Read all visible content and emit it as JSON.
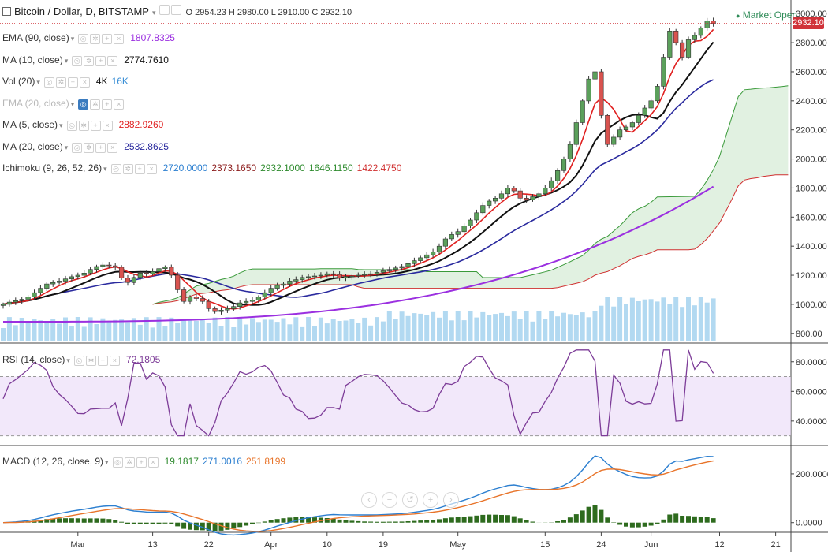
{
  "header": {
    "title": "Bitcoin / Dollar, D, BITSTAMP",
    "ohlc_text": "O 2954.23 H 2980.00 L 2910.00 C 2932.10",
    "market_status": "Market Open",
    "last_price": "2932.10"
  },
  "indicators": [
    {
      "name": "EMA (90, close)",
      "values": [
        "1807.8325"
      ],
      "value_colors": [
        "#9b30e0"
      ],
      "faded": false
    },
    {
      "name": "MA (10, close)",
      "values": [
        "2774.7610"
      ],
      "value_colors": [
        "#111111"
      ],
      "faded": false
    },
    {
      "name": "Vol (20)",
      "values": [
        "4K",
        "16K"
      ],
      "value_colors": [
        "#111111",
        "#3a8fd6"
      ],
      "faded": false
    },
    {
      "name": "EMA (20, close)",
      "values": [],
      "value_colors": [],
      "faded": true
    },
    {
      "name": "MA (5, close)",
      "values": [
        "2882.9260"
      ],
      "value_colors": [
        "#e02020"
      ],
      "faded": false
    },
    {
      "name": "MA (20, close)",
      "values": [
        "2532.8625"
      ],
      "value_colors": [
        "#2a2a9e"
      ],
      "faded": false
    },
    {
      "name": "Ichimoku (9, 26, 52, 26)",
      "values": [
        "2720.0000",
        "2373.1650",
        "2932.1000",
        "1646.1150",
        "1422.4750"
      ],
      "value_colors": [
        "#2c7fd0",
        "#8b1a1a",
        "#2e8b2e",
        "#2e8b2e",
        "#d03030"
      ],
      "faded": false
    }
  ],
  "rsi": {
    "name": "RSI (14, close)",
    "value": "72.1805"
  },
  "macd": {
    "name": "MACD (12, 26, close, 9)",
    "values": [
      "19.1817",
      "271.0016",
      "251.8199"
    ],
    "value_colors": [
      "#2e8b2e",
      "#2c7fd0",
      "#e8742a"
    ]
  },
  "nav": [
    "‹",
    "−",
    "↺",
    "+",
    "›"
  ],
  "colors": {
    "up": "#5ba05b",
    "down": "#d9534f",
    "ema90": "#9b30e0",
    "ma10": "#111111",
    "ma5": "#e02020",
    "ma20": "#2a2a9e",
    "rsi": "#7d3c98",
    "macd": "#2c7fd0",
    "signal": "#e8742a",
    "hist": "#2e6b1e",
    "cloud": "#c8e6c8",
    "volume": "#9fd0ee"
  },
  "chart_data": {
    "type": "candlestick",
    "price_axis": {
      "min": 750,
      "max": 3050,
      "ticks": [
        800,
        1000,
        1200,
        1400,
        1600,
        1800,
        2000,
        2200,
        2400,
        2600,
        2800,
        3000
      ],
      "tick_labels": [
        "800.00",
        "1000.00",
        "1200.00",
        "1400.00",
        "1600.00",
        "1800.00",
        "2000.00",
        "2200.00",
        "2400.00",
        "2600.00",
        "2800.00",
        "3000.00"
      ]
    },
    "x_ticks": [
      {
        "i": 12,
        "label": "Mar"
      },
      {
        "i": 24,
        "label": "13"
      },
      {
        "i": 33,
        "label": "22"
      },
      {
        "i": 43,
        "label": "Apr"
      },
      {
        "i": 52,
        "label": "10"
      },
      {
        "i": 61,
        "label": "19"
      },
      {
        "i": 73,
        "label": "May"
      },
      {
        "i": 87,
        "label": "15"
      },
      {
        "i": 96,
        "label": "24"
      },
      {
        "i": 104,
        "label": "Jun"
      },
      {
        "i": 115,
        "label": "12"
      },
      {
        "i": 124,
        "label": "21"
      }
    ],
    "closes": [
      1000,
      1015,
      1025,
      1035,
      1050,
      1080,
      1110,
      1140,
      1150,
      1160,
      1175,
      1190,
      1200,
      1215,
      1240,
      1260,
      1270,
      1265,
      1255,
      1180,
      1150,
      1185,
      1215,
      1210,
      1225,
      1245,
      1255,
      1200,
      1100,
      1020,
      1050,
      1040,
      1020,
      970,
      950,
      960,
      970,
      985,
      1010,
      1020,
      1030,
      1050,
      1080,
      1110,
      1130,
      1140,
      1160,
      1170,
      1185,
      1190,
      1195,
      1200,
      1210,
      1205,
      1180,
      1190,
      1195,
      1200,
      1205,
      1210,
      1220,
      1230,
      1240,
      1250,
      1260,
      1280,
      1300,
      1320,
      1340,
      1360,
      1400,
      1450,
      1480,
      1500,
      1540,
      1580,
      1630,
      1680,
      1710,
      1730,
      1760,
      1800,
      1780,
      1730,
      1720,
      1740,
      1760,
      1800,
      1850,
      1920,
      2000,
      2100,
      2250,
      2400,
      2550,
      2600,
      2300,
      2100,
      2150,
      2200,
      2220,
      2250,
      2300,
      2350,
      2400,
      2500,
      2700,
      2880,
      2800,
      2700,
      2820,
      2850,
      2900,
      2950,
      2932
    ],
    "ema90": [
      900,
      1400,
      1600,
      1808
    ],
    "rsi": {
      "axis": {
        "min": 25,
        "max": 90,
        "ticks": [
          40,
          60,
          80
        ],
        "tick_labels": [
          "40.0000",
          "60.0000",
          "80.0000"
        ]
      },
      "overbought": 70,
      "oversold": 30,
      "last": 72.18
    },
    "macd": {
      "axis": {
        "min": -30,
        "max": 300,
        "ticks": [
          0,
          200
        ],
        "tick_labels": [
          "0.0000",
          "200.0000"
        ]
      },
      "macd_last": 271.0,
      "signal_last": 251.82,
      "hist_last": 19.18
    }
  }
}
